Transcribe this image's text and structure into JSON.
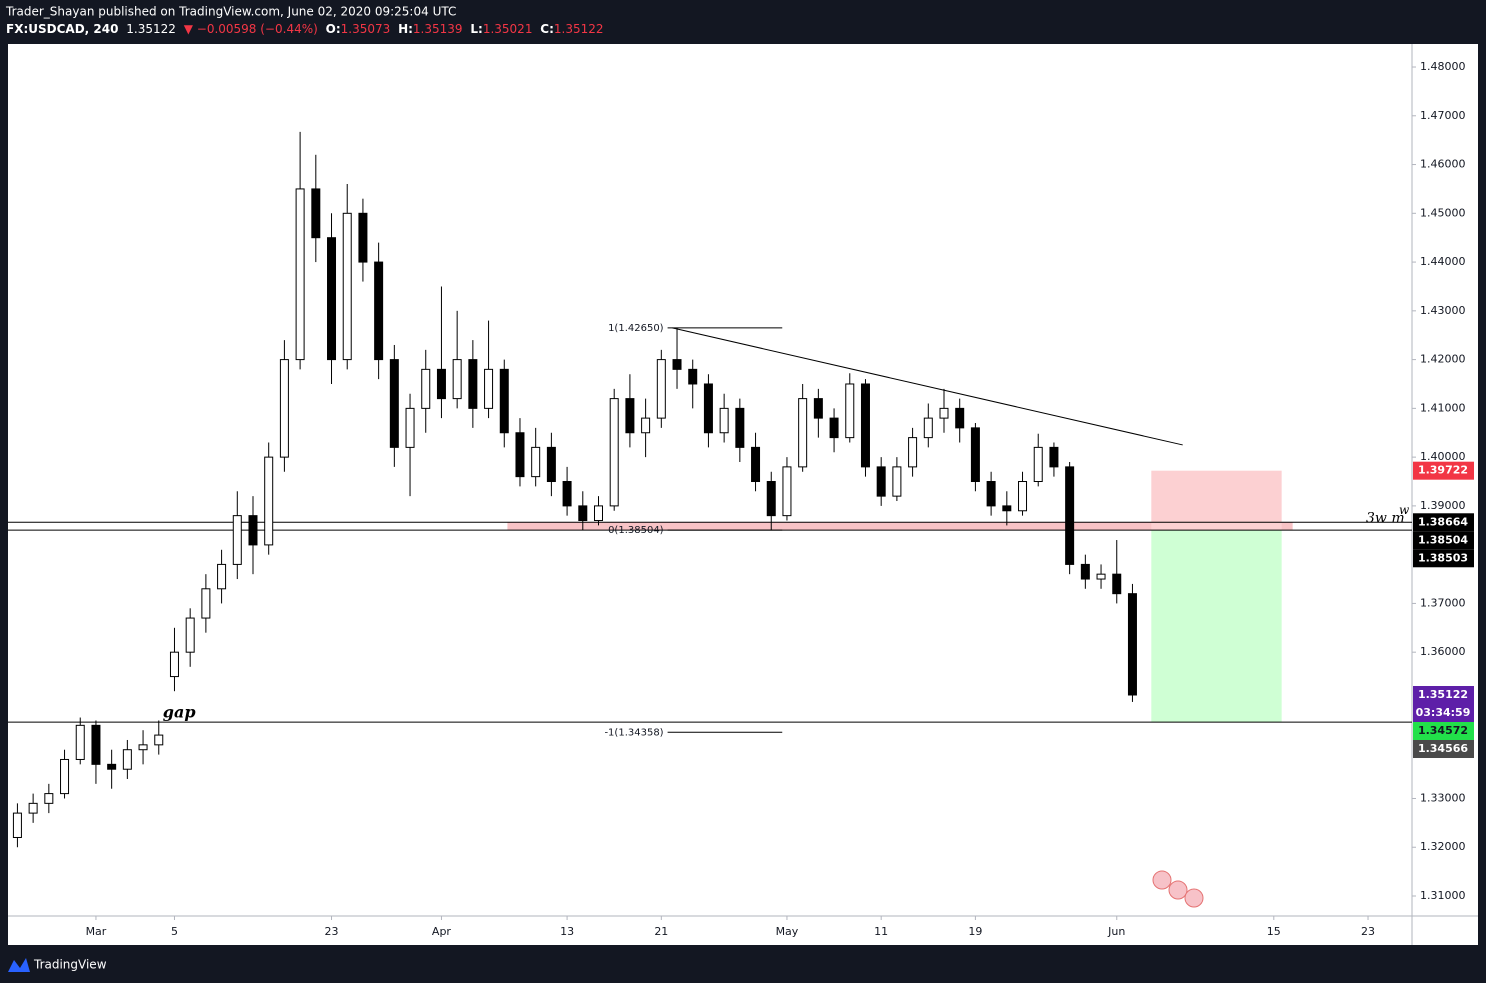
{
  "header": {
    "line1": "Trader_Shayan published on TradingView.com, June 02, 2020 09:25:04 UTC",
    "symbol": "FX:USDCAD, 240",
    "price": "1.35122",
    "change": "▼ −0.00598 (−0.44%)",
    "ohlc": [
      {
        "key": "O:",
        "value": "1.35073"
      },
      {
        "key": "H:",
        "value": "1.35139"
      },
      {
        "key": "L:",
        "value": "1.35021"
      },
      {
        "key": "C:",
        "value": "1.35122"
      }
    ]
  },
  "footer": {
    "brand": "TradingView"
  },
  "chart_data": {
    "type": "candlestick",
    "x": [
      -5,
      -4,
      -3,
      -2,
      -1,
      0,
      1,
      2,
      3,
      4,
      5,
      6,
      7,
      8,
      9,
      10,
      11,
      12,
      13,
      14,
      15,
      16,
      17,
      18,
      19,
      20,
      21,
      22,
      23,
      24,
      25,
      26,
      27,
      28,
      29,
      30,
      31,
      32,
      33,
      34,
      35,
      36,
      37,
      38,
      39,
      40,
      41,
      42,
      43,
      44,
      45,
      46,
      47,
      48,
      49,
      50,
      51,
      52,
      53,
      54,
      55,
      56,
      57,
      58,
      59,
      60,
      61,
      62,
      63,
      64,
      65,
      66
    ],
    "open": [
      1.322,
      1.327,
      1.329,
      1.331,
      1.338,
      1.345,
      1.337,
      1.336,
      1.34,
      1.341,
      1.355,
      1.36,
      1.367,
      1.373,
      1.378,
      1.388,
      1.382,
      1.4,
      1.42,
      1.455,
      1.445,
      1.42,
      1.45,
      1.44,
      1.42,
      1.402,
      1.41,
      1.418,
      1.412,
      1.42,
      1.41,
      1.418,
      1.405,
      1.396,
      1.402,
      1.395,
      1.39,
      1.387,
      1.39,
      1.412,
      1.405,
      1.408,
      1.42,
      1.418,
      1.415,
      1.405,
      1.41,
      1.402,
      1.395,
      1.388,
      1.398,
      1.412,
      1.408,
      1.404,
      1.415,
      1.398,
      1.392,
      1.398,
      1.404,
      1.408,
      1.41,
      1.406,
      1.395,
      1.39,
      1.389,
      1.395,
      1.402,
      1.398,
      1.378,
      1.375,
      1.376,
      1.372
    ],
    "high": [
      1.329,
      1.331,
      1.333,
      1.34,
      1.3466,
      1.346,
      1.34,
      1.342,
      1.344,
      1.346,
      1.365,
      1.369,
      1.376,
      1.381,
      1.393,
      1.392,
      1.403,
      1.424,
      1.4667,
      1.462,
      1.45,
      1.456,
      1.453,
      1.444,
      1.423,
      1.413,
      1.422,
      1.435,
      1.43,
      1.424,
      1.428,
      1.42,
      1.408,
      1.406,
      1.405,
      1.398,
      1.393,
      1.392,
      1.414,
      1.417,
      1.412,
      1.422,
      1.4265,
      1.42,
      1.417,
      1.413,
      1.412,
      1.405,
      1.397,
      1.4,
      1.415,
      1.414,
      1.41,
      1.4172,
      1.416,
      1.4,
      1.4,
      1.406,
      1.411,
      1.414,
      1.412,
      1.407,
      1.397,
      1.393,
      1.397,
      1.4048,
      1.403,
      1.399,
      1.38,
      1.378,
      1.383,
      1.374
    ],
    "low": [
      1.32,
      1.325,
      1.327,
      1.33,
      1.337,
      1.333,
      1.332,
      1.334,
      1.337,
      1.339,
      1.352,
      1.357,
      1.364,
      1.37,
      1.375,
      1.376,
      1.38,
      1.397,
      1.418,
      1.44,
      1.415,
      1.418,
      1.436,
      1.416,
      1.398,
      1.392,
      1.405,
      1.408,
      1.41,
      1.406,
      1.408,
      1.402,
      1.394,
      1.394,
      1.392,
      1.388,
      1.385,
      1.386,
      1.389,
      1.402,
      1.4,
      1.406,
      1.414,
      1.41,
      1.402,
      1.403,
      1.399,
      1.393,
      1.385,
      1.387,
      1.397,
      1.404,
      1.401,
      1.403,
      1.396,
      1.39,
      1.391,
      1.396,
      1.402,
      1.405,
      1.403,
      1.393,
      1.388,
      1.386,
      1.388,
      1.394,
      1.396,
      1.376,
      1.373,
      1.373,
      1.37,
      1.3498
    ],
    "close": [
      1.327,
      1.329,
      1.331,
      1.338,
      1.345,
      1.337,
      1.336,
      1.34,
      1.341,
      1.343,
      1.36,
      1.367,
      1.373,
      1.378,
      1.388,
      1.382,
      1.4,
      1.42,
      1.455,
      1.445,
      1.42,
      1.45,
      1.44,
      1.42,
      1.402,
      1.41,
      1.418,
      1.412,
      1.42,
      1.41,
      1.418,
      1.405,
      1.396,
      1.402,
      1.395,
      1.39,
      1.387,
      1.39,
      1.412,
      1.405,
      1.408,
      1.42,
      1.418,
      1.415,
      1.405,
      1.41,
      1.402,
      1.395,
      1.388,
      1.398,
      1.412,
      1.408,
      1.404,
      1.415,
      1.398,
      1.392,
      1.398,
      1.404,
      1.408,
      1.41,
      1.406,
      1.395,
      1.39,
      1.389,
      1.395,
      1.402,
      1.398,
      1.378,
      1.375,
      1.376,
      1.372,
      1.35122
    ],
    "up_color": "#ffffff",
    "down_color": "#000000",
    "wick_color": "#000000",
    "xlim": [
      -5.6,
      83.8
    ],
    "xticks": [
      {
        "value": 0,
        "label": "Mar"
      },
      5,
      {
        "value": 15,
        "label": "23"
      },
      {
        "value": 22,
        "label": "Apr"
      },
      {
        "value": 30,
        "label": "13"
      },
      {
        "value": 36,
        "label": "21"
      },
      {
        "value": 44,
        "label": "May"
      },
      {
        "value": 50,
        "label": "11"
      },
      {
        "value": 56,
        "label": "19"
      },
      {
        "value": 65,
        "label": "Jun"
      },
      {
        "value": 75,
        "label": "15"
      },
      {
        "value": 81,
        "label": "23"
      }
    ],
    "ylim": [
      1.3059,
      1.48472
    ],
    "yticks": [
      {
        "value": 1.48,
        "label": "1.48000"
      },
      {
        "value": 1.47,
        "label": "1.47000"
      },
      {
        "value": 1.46,
        "label": "1.46000"
      },
      {
        "value": 1.45,
        "label": "1.45000"
      },
      {
        "value": 1.44,
        "label": "1.44000"
      },
      {
        "value": 1.43,
        "label": "1.43000"
      },
      {
        "value": 1.42,
        "label": "1.42000"
      },
      {
        "value": 1.41,
        "label": "1.41000"
      },
      {
        "value": 1.4,
        "label": "1.40000"
      },
      {
        "value": 1.39,
        "label": "1.39000"
      },
      {
        "value": 1.37,
        "label": "1.37000"
      },
      {
        "value": 1.36,
        "label": "1.36000"
      },
      {
        "value": 1.33,
        "label": "1.33000"
      },
      {
        "value": 1.32,
        "label": "1.32000"
      },
      {
        "value": 1.31,
        "label": "1.31000"
      }
    ],
    "grid": false,
    "hlines": [
      1.38664,
      1.38504,
      1.34566
    ],
    "zone": [
      1.385,
      1.3866
    ],
    "fib": [
      {
        "value": 1.4265,
        "label": "1(1.42650)"
      },
      {
        "value": 1.38504,
        "label": "0(1.38504)"
      },
      {
        "value": 1.34358,
        "label": "-1(1.34358)"
      }
    ],
    "trendline": [
      1.4265,
      1.4025
    ],
    "position": {
      "stop": 1.39722,
      "entry": 1.38504,
      "target": 1.34566
    },
    "annotations": [
      "gap",
      "3w m",
      "w"
    ],
    "price_labels": [
      {
        "value": 1.39722,
        "bg": "#f23645",
        "fg": "#ffffff"
      },
      {
        "value": 1.38664,
        "bg": "#000000",
        "fg": "#ffffff"
      },
      {
        "value": 1.38504,
        "bg": "#000000",
        "fg": "#ffffff"
      },
      {
        "value": 1.38503,
        "bg": "#000000",
        "fg": "#ffffff"
      },
      {
        "value": 1.35122,
        "bg": "#5e1fa8",
        "fg": "#ffffff"
      },
      {
        "value": 1.34572,
        "bg": "#22e04a",
        "fg": "#131722"
      },
      {
        "value": 1.34566,
        "bg": "#4a4a4a",
        "fg": "#ffffff"
      }
    ],
    "countdown": "03:34:59"
  }
}
